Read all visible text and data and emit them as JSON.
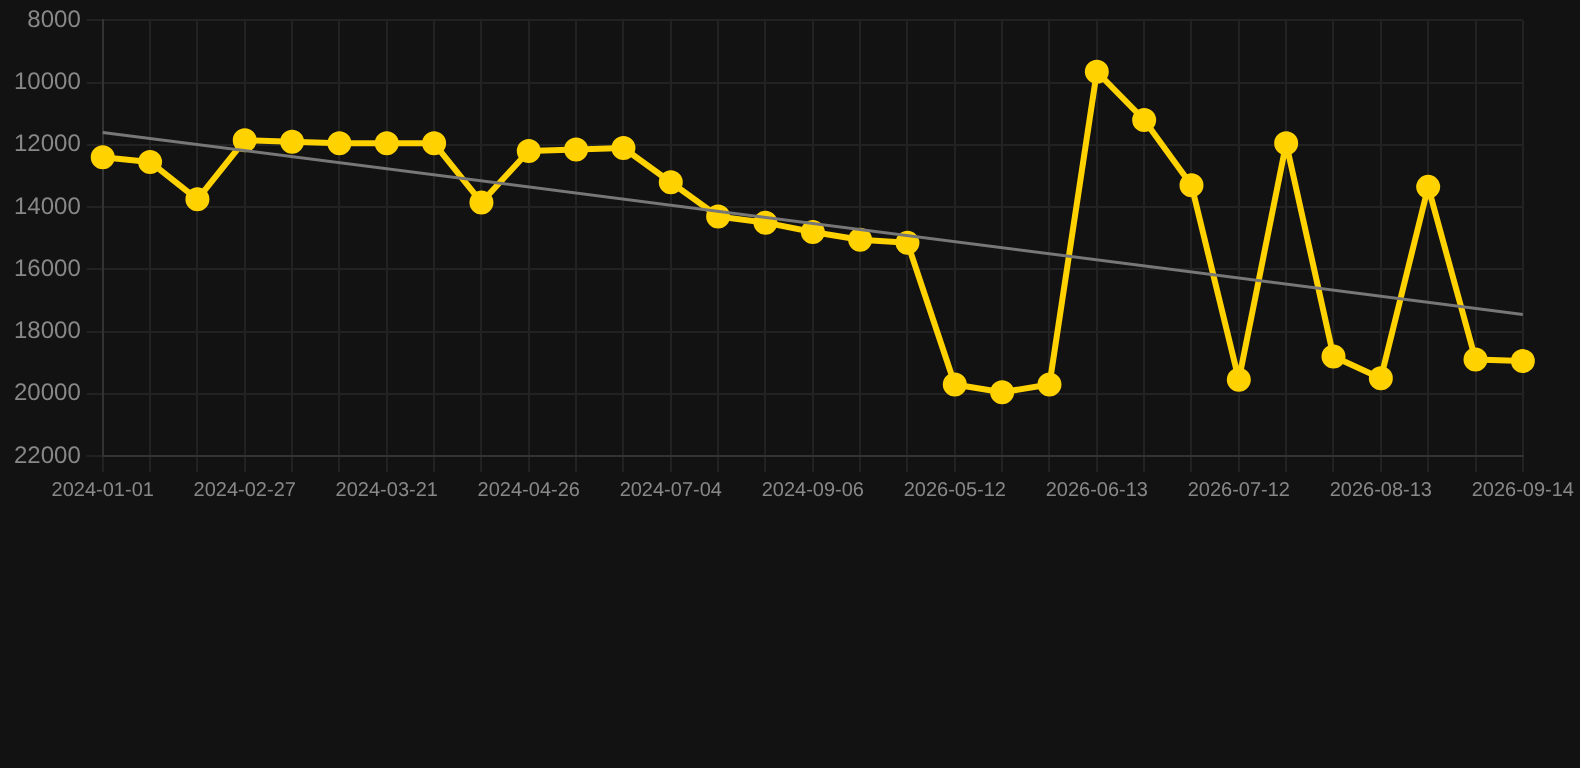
{
  "chart_data": {
    "type": "line",
    "categories": [
      "2024-01-01",
      null,
      null,
      "2024-02-27",
      null,
      null,
      "2024-03-21",
      null,
      null,
      "2024-04-26",
      null,
      null,
      "2024-07-04",
      null,
      null,
      "2024-09-06",
      null,
      null,
      "2026-05-12",
      null,
      null,
      "2026-06-13",
      null,
      null,
      "2026-07-12",
      null,
      null,
      "2026-08-13",
      null,
      null,
      "2026-09-14"
    ],
    "series": [
      {
        "color": "#ffd200",
        "marker": "circle",
        "values": [
          12400,
          12550,
          13750,
          11850,
          11900,
          11950,
          11950,
          11950,
          13850,
          12200,
          12150,
          12100,
          13200,
          14300,
          14500,
          14800,
          15050,
          15150,
          19700,
          19950,
          19700,
          9650,
          11200,
          13300,
          19550,
          11950,
          18800,
          19500,
          13350,
          18900,
          18950
        ]
      },
      {
        "type": "line",
        "color": "#777777",
        "marker": "none",
        "values": [
          11600,
          null,
          null,
          null,
          null,
          null,
          null,
          null,
          null,
          null,
          null,
          null,
          null,
          null,
          null,
          null,
          null,
          null,
          null,
          null,
          null,
          null,
          null,
          null,
          null,
          null,
          null,
          null,
          null,
          null,
          17450
        ]
      }
    ],
    "ylim": [
      22000,
      8000
    ],
    "yticks": [
      8000,
      10000,
      12000,
      14000,
      16000,
      18000,
      20000,
      22000
    ],
    "grid": true
  }
}
